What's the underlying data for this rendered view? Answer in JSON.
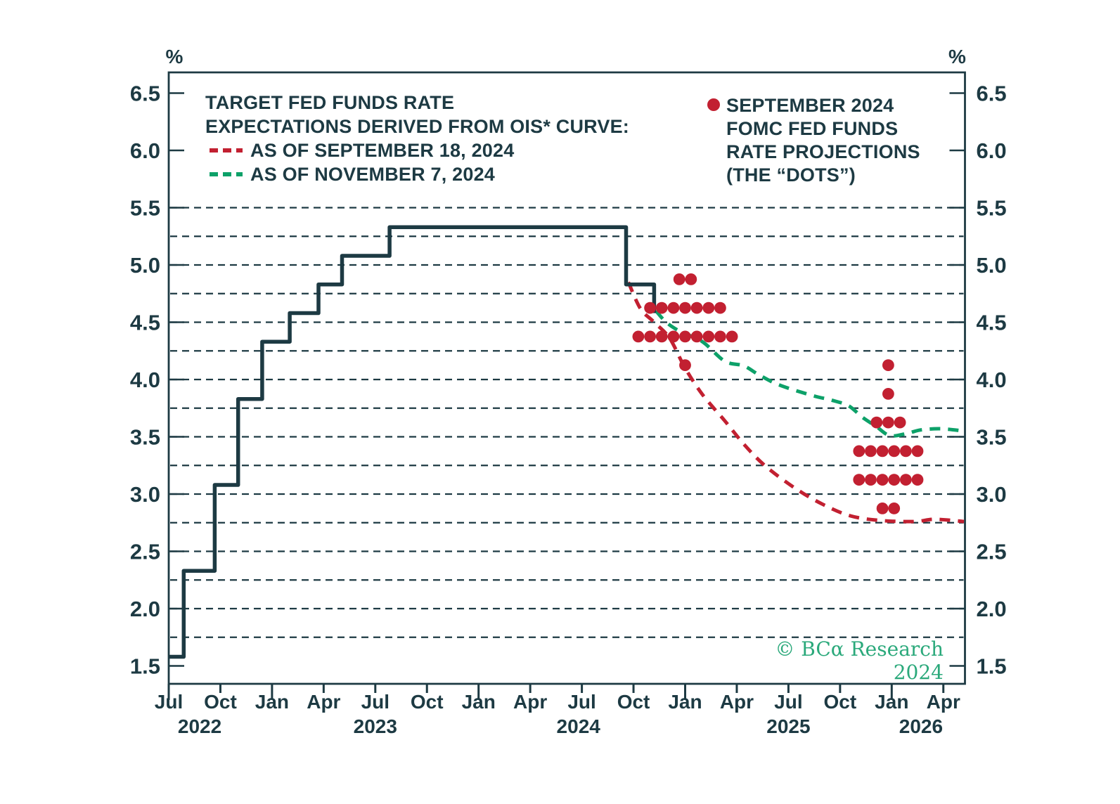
{
  "colors": {
    "dark": "#1d3a43",
    "red": "#c22031",
    "green": "#0da169",
    "copyright_green": "#2ba97b",
    "background": "#ffffff"
  },
  "legend_ois": {
    "title_line1": "TARGET FED FUNDS RATE",
    "title_line2": "EXPECTATIONS DERIVED FROM OIS* CURVE:",
    "items": [
      {
        "label": "AS OF SEPTEMBER 18, 2024",
        "color_key": "red"
      },
      {
        "label": "AS OF NOVEMBER 7, 2024",
        "color_key": "green"
      }
    ]
  },
  "legend_dots": {
    "marker": "red-dot",
    "lines": [
      "SEPTEMBER 2024",
      "FOMC FED FUNDS",
      "RATE PROJECTIONS",
      "(THE “DOTS”)"
    ]
  },
  "copyright": "© BCα Research 2024",
  "chart_data": {
    "type": "line",
    "unit": "%",
    "percent_label": "%",
    "x_axis": {
      "note": "x measured in months since Jul 2022; quarterly ticks",
      "quarter_ticks": [
        {
          "m": 0,
          "label": "Jul"
        },
        {
          "m": 3,
          "label": "Oct"
        },
        {
          "m": 6,
          "label": "Jan"
        },
        {
          "m": 9,
          "label": "Apr"
        },
        {
          "m": 12,
          "label": "Jul"
        },
        {
          "m": 15,
          "label": "Oct"
        },
        {
          "m": 18,
          "label": "Jan"
        },
        {
          "m": 21,
          "label": "Apr"
        },
        {
          "m": 24,
          "label": "Jul"
        },
        {
          "m": 27,
          "label": "Oct"
        },
        {
          "m": 30,
          "label": "Jan"
        },
        {
          "m": 33,
          "label": "Apr"
        },
        {
          "m": 36,
          "label": "Jul"
        },
        {
          "m": 39,
          "label": "Oct"
        },
        {
          "m": 42,
          "label": "Jan"
        },
        {
          "m": 45,
          "label": "Apr"
        }
      ],
      "year_labels": [
        {
          "m": 1.8,
          "label": "2022"
        },
        {
          "m": 12,
          "label": "2023"
        },
        {
          "m": 23.8,
          "label": "2024"
        },
        {
          "m": 36,
          "label": "2025"
        },
        {
          "m": 43.7,
          "label": "2026"
        }
      ]
    },
    "y_axis": {
      "min": 1.5,
      "max": 6.5,
      "label_step": 0.5,
      "tick_labels": [
        "1.5",
        "2.0",
        "2.5",
        "3.0",
        "3.5",
        "4.0",
        "4.5",
        "5.0",
        "5.5",
        "6.0",
        "6.5"
      ],
      "grid_min": 1.75,
      "grid_max": 5.5,
      "grid_step": 0.25,
      "grid_style": "dashed"
    },
    "series": [
      {
        "name": "Target fed funds rate (actual, effective)",
        "style": "step",
        "dashed": false,
        "color_key": "dark",
        "points": [
          [
            0,
            1.58
          ],
          [
            0.87,
            2.33
          ],
          [
            2.67,
            3.08
          ],
          [
            4.03,
            3.83
          ],
          [
            5.43,
            4.33
          ],
          [
            7.03,
            4.58
          ],
          [
            8.7,
            4.83
          ],
          [
            10.07,
            5.08
          ],
          [
            12.83,
            5.33
          ],
          [
            26.57,
            4.83
          ],
          [
            28.2,
            4.58
          ]
        ]
      },
      {
        "name": "OIS-implied path as of September 18, 2024",
        "style": "curve",
        "dashed": true,
        "color_key": "red",
        "points": [
          [
            26.7,
            4.85
          ],
          [
            27.4,
            4.62
          ],
          [
            28.2,
            4.5
          ],
          [
            29.1,
            4.36
          ],
          [
            30,
            4.1
          ],
          [
            31,
            3.87
          ],
          [
            32.3,
            3.64
          ],
          [
            33.5,
            3.42
          ],
          [
            34.7,
            3.24
          ],
          [
            36.4,
            3.05
          ],
          [
            38,
            2.91
          ],
          [
            39.6,
            2.81
          ],
          [
            41.3,
            2.77
          ],
          [
            43.3,
            2.76
          ],
          [
            44.5,
            2.78
          ],
          [
            46.2,
            2.76
          ]
        ]
      },
      {
        "name": "OIS-implied path as of November 7, 2024",
        "style": "curve",
        "dashed": true,
        "color_key": "green",
        "points": [
          [
            28.3,
            4.6
          ],
          [
            28.9,
            4.5
          ],
          [
            29.7,
            4.42
          ],
          [
            31,
            4.33
          ],
          [
            32.3,
            4.16
          ],
          [
            33.4,
            4.12
          ],
          [
            34.3,
            4.04
          ],
          [
            35.5,
            3.95
          ],
          [
            37.4,
            3.86
          ],
          [
            38.5,
            3.82
          ],
          [
            39.5,
            3.77
          ],
          [
            40.3,
            3.67
          ],
          [
            41.1,
            3.59
          ],
          [
            41.9,
            3.51
          ],
          [
            42.9,
            3.53
          ],
          [
            43.7,
            3.56
          ],
          [
            44.9,
            3.57
          ],
          [
            46.2,
            3.55
          ]
        ]
      }
    ],
    "dots": {
      "name": "September 2024 FOMC fed funds rate projections (the dots)",
      "color_key": "red",
      "rows": [
        {
          "rate": 4.875,
          "months": [
            29.66,
            30.34
          ]
        },
        {
          "rate": 4.625,
          "months": [
            27.96,
            28.64,
            29.32,
            30,
            30.68,
            31.36,
            32.04
          ]
        },
        {
          "rate": 4.375,
          "months": [
            27.28,
            27.96,
            28.64,
            29.32,
            30,
            30.68,
            31.36,
            32.04,
            32.72
          ]
        },
        {
          "rate": 4.125,
          "months": [
            30
          ]
        },
        {
          "rate": 4.125,
          "months": [
            41.8
          ]
        },
        {
          "rate": 3.875,
          "months": [
            41.8
          ]
        },
        {
          "rate": 3.625,
          "months": [
            41.12,
            41.8,
            42.48
          ]
        },
        {
          "rate": 3.375,
          "months": [
            40.1,
            40.78,
            41.46,
            42.14,
            42.82,
            43.5
          ]
        },
        {
          "rate": 3.125,
          "months": [
            40.1,
            40.78,
            41.46,
            42.14,
            42.82,
            43.5
          ]
        },
        {
          "rate": 2.875,
          "months": [
            41.46,
            42.14
          ]
        }
      ]
    }
  }
}
